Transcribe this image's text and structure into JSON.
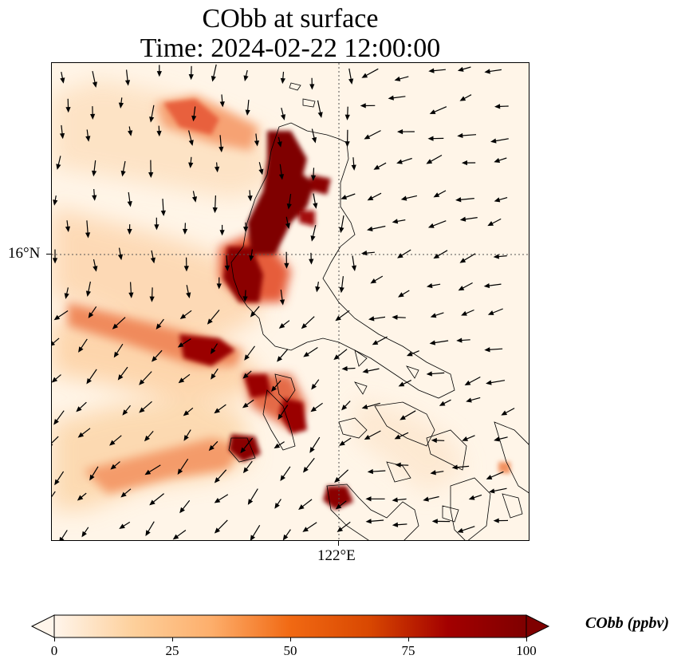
{
  "title": {
    "line1": "CObb at surface",
    "line2": "Time: 2024-02-22 12:00:00"
  },
  "axes": {
    "lat_label": "16°N",
    "lon_label": "122°E"
  },
  "colorbar": {
    "label": "CObb (ppbv)",
    "ticks": [
      "0",
      "25",
      "50",
      "75",
      "100"
    ],
    "range": [
      0,
      100
    ],
    "extend": "both",
    "colormap": [
      "#fff5eb",
      "#fdd09c",
      "#fdae6b",
      "#f16913",
      "#d94801",
      "#a30000",
      "#7f0000"
    ]
  },
  "map": {
    "gridlines": "dotted",
    "background_color": "#fff5e8",
    "coastline_color": "#000000",
    "wind_vectors": "shown"
  }
}
